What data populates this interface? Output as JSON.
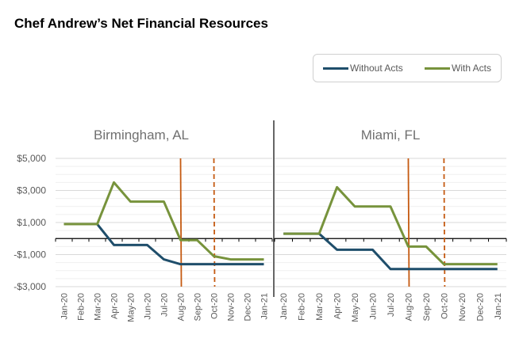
{
  "title": "Chef Andrew’s Net Financial Resources",
  "legend": {
    "items": [
      {
        "label": "Without Acts",
        "color": "#1f4e6b"
      },
      {
        "label": "With Acts",
        "color": "#77933c"
      }
    ]
  },
  "colors": {
    "without": "#1f4e6b",
    "with": "#77933c",
    "marker": "#c55a11",
    "grid": "#e6e6e6",
    "axis": "#000000"
  },
  "chart_data": [
    {
      "type": "line",
      "title": "Birmingham, AL",
      "categories": [
        "Jan-20",
        "Feb-20",
        "Mar-20",
        "Apr-20",
        "May-20",
        "Jun-20",
        "Jul-20",
        "Aug-20",
        "Sep-20",
        "Oct-20",
        "Nov-20",
        "Dec-20",
        "Jan-21"
      ],
      "ylim": [
        -3000,
        5000
      ],
      "yticks": [
        5000,
        3000,
        1000,
        -1000,
        -3000
      ],
      "ytick_labels": [
        "$5,000",
        "$3,000",
        "$1,000",
        "-$1,000",
        "-$3,000"
      ],
      "series": [
        {
          "name": "Without Acts",
          "values": [
            900,
            900,
            900,
            -400,
            -400,
            -400,
            -1300,
            -1600,
            -1600,
            -1600,
            -1600,
            -1600,
            -1600
          ]
        },
        {
          "name": "With Acts",
          "values": [
            900,
            900,
            900,
            3500,
            2300,
            2300,
            2300,
            -100,
            -100,
            -1100,
            -1300,
            -1300,
            -1300
          ]
        }
      ],
      "markers": [
        {
          "at": "Aug-20",
          "style": "solid"
        },
        {
          "at": "Oct-20",
          "style": "dashed"
        }
      ]
    },
    {
      "type": "line",
      "title": "Miami, FL",
      "categories": [
        "Jan-20",
        "Feb-20",
        "Mar-20",
        "Apr-20",
        "May-20",
        "Jun-20",
        "Jul-20",
        "Aug-20",
        "Sep-20",
        "Oct-20",
        "Nov-20",
        "Dec-20",
        "Jan-21"
      ],
      "ylim": [
        -3000,
        5000
      ],
      "series": [
        {
          "name": "Without Acts",
          "values": [
            300,
            300,
            300,
            -700,
            -700,
            -700,
            -1900,
            -1900,
            -1900,
            -1900,
            -1900,
            -1900,
            -1900
          ]
        },
        {
          "name": "With Acts",
          "values": [
            300,
            300,
            300,
            3200,
            2000,
            2000,
            2000,
            -500,
            -500,
            -1600,
            -1600,
            -1600,
            -1600
          ]
        }
      ],
      "markers": [
        {
          "at": "Aug-20",
          "style": "solid"
        },
        {
          "at": "Oct-20",
          "style": "dashed"
        }
      ]
    }
  ]
}
